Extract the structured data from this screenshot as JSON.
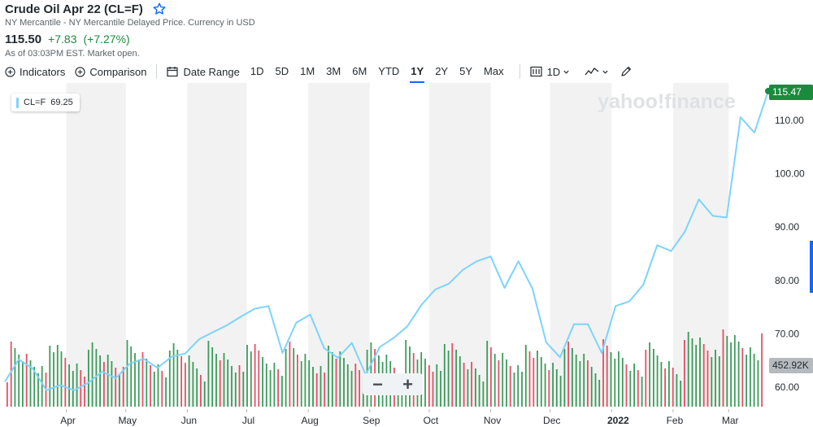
{
  "header": {
    "title": "Crude Oil Apr 22 (CL=F)",
    "subtitle": "NY Mercantile - NY Mercantile Delayed Price. Currency in USD",
    "price": "115.50",
    "change": "+7.83",
    "change_pct": "(+7.27%)",
    "as_of": "As of 03:03PM EST. Market open."
  },
  "toolbar": {
    "indicators": "Indicators",
    "comparison": "Comparison",
    "date_range": "Date Range",
    "ranges": [
      "1D",
      "5D",
      "1M",
      "3M",
      "6M",
      "YTD",
      "1Y",
      "2Y",
      "5Y",
      "Max"
    ],
    "active_range": "1Y",
    "interval": "1D",
    "icons": [
      "plus-circle-icon",
      "calendar-icon",
      "candle-icon",
      "line-chart-icon",
      "pencil-icon"
    ]
  },
  "legend": {
    "symbol": "CL=F",
    "value": "69.25"
  },
  "price_tag": "115.47",
  "volume_tag": "452.92K",
  "watermark": "yahoo!finance",
  "zoom": {
    "minus": "−",
    "plus": "+"
  },
  "colors": {
    "line": "#7dd3fb",
    "up": "#1a8b3d",
    "down": "#e0334b",
    "band": "#f2f2f2",
    "tag": "#1a8b3d"
  },
  "chart_data": {
    "type": "line",
    "title": "Crude Oil Apr 22 (CL=F)",
    "y_ticks": [
      60,
      70,
      80,
      90,
      100,
      110
    ],
    "ylim": [
      56,
      118
    ],
    "x_labels": [
      "Apr",
      "May",
      "Jun",
      "Jul",
      "Aug",
      "Sep",
      "Oct",
      "Nov",
      "Dec",
      "2022",
      "Feb",
      "Mar"
    ],
    "series": [
      {
        "name": "CL=F",
        "values": [
          {
            "date": "2021-03-01",
            "close": 61.0
          },
          {
            "date": "2021-03-08",
            "close": 65.2
          },
          {
            "date": "2021-03-15",
            "close": 63.5
          },
          {
            "date": "2021-03-22",
            "close": 59.4
          },
          {
            "date": "2021-03-29",
            "close": 60.4
          },
          {
            "date": "2021-04-05",
            "close": 59.4
          },
          {
            "date": "2021-04-12",
            "close": 60.8
          },
          {
            "date": "2021-04-19",
            "close": 62.9
          },
          {
            "date": "2021-04-26",
            "close": 61.7
          },
          {
            "date": "2021-05-03",
            "close": 64.4
          },
          {
            "date": "2021-05-10",
            "close": 65.3
          },
          {
            "date": "2021-05-17",
            "close": 63.6
          },
          {
            "date": "2021-05-24",
            "close": 65.7
          },
          {
            "date": "2021-05-31",
            "close": 66.3
          },
          {
            "date": "2021-06-07",
            "close": 69.0
          },
          {
            "date": "2021-06-14",
            "close": 70.3
          },
          {
            "date": "2021-06-21",
            "close": 71.6
          },
          {
            "date": "2021-06-28",
            "close": 73.2
          },
          {
            "date": "2021-07-05",
            "close": 74.7
          },
          {
            "date": "2021-07-12",
            "close": 75.2
          },
          {
            "date": "2021-07-19",
            "close": 66.4
          },
          {
            "date": "2021-07-26",
            "close": 72.1
          },
          {
            "date": "2021-08-02",
            "close": 73.6
          },
          {
            "date": "2021-08-09",
            "close": 67.3
          },
          {
            "date": "2021-08-16",
            "close": 65.5
          },
          {
            "date": "2021-08-23",
            "close": 68.3
          },
          {
            "date": "2021-08-30",
            "close": 62.3
          },
          {
            "date": "2021-09-06",
            "close": 67.5
          },
          {
            "date": "2021-09-13",
            "close": 69.2
          },
          {
            "date": "2021-09-20",
            "close": 71.4
          },
          {
            "date": "2021-09-27",
            "close": 75.4
          },
          {
            "date": "2021-10-04",
            "close": 78.3
          },
          {
            "date": "2021-10-11",
            "close": 79.4
          },
          {
            "date": "2021-10-18",
            "close": 82.0
          },
          {
            "date": "2021-10-25",
            "close": 83.6
          },
          {
            "date": "2021-11-01",
            "close": 84.5
          },
          {
            "date": "2021-11-08",
            "close": 78.6
          },
          {
            "date": "2021-11-15",
            "close": 83.6
          },
          {
            "date": "2021-11-22",
            "close": 78.5
          },
          {
            "date": "2021-11-29",
            "close": 68.4
          },
          {
            "date": "2021-12-06",
            "close": 65.6
          },
          {
            "date": "2021-12-13",
            "close": 71.8
          },
          {
            "date": "2021-12-20",
            "close": 71.8
          },
          {
            "date": "2021-12-27",
            "close": 66.4
          },
          {
            "date": "2022-01-03",
            "close": 75.2
          },
          {
            "date": "2022-01-10",
            "close": 76.1
          },
          {
            "date": "2022-01-17",
            "close": 79.2
          },
          {
            "date": "2022-01-24",
            "close": 86.6
          },
          {
            "date": "2022-01-31",
            "close": 85.5
          },
          {
            "date": "2022-02-07",
            "close": 89.2
          },
          {
            "date": "2022-02-14",
            "close": 95.2
          },
          {
            "date": "2022-02-21",
            "close": 92.1
          },
          {
            "date": "2022-02-28",
            "close": 91.8
          },
          {
            "date": "2022-03-07",
            "close": 110.6
          },
          {
            "date": "2022-03-14",
            "close": 107.7
          },
          {
            "date": "2022-03-21",
            "close": 115.5
          }
        ]
      }
    ],
    "volume": {
      "unit": "K",
      "last": 452.92,
      "bars": []
    },
    "grid": "alternating monthly bands",
    "legend_placement": "top-left"
  }
}
